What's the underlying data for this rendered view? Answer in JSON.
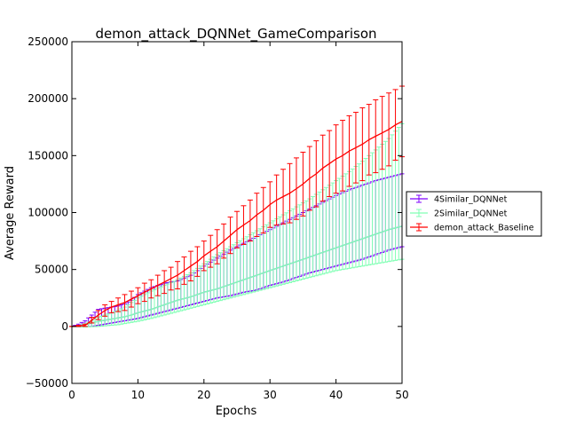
{
  "chart_data": {
    "type": "line",
    "title": "demon_attack_DQNNet_GameComparison",
    "xlabel": "Epochs",
    "ylabel": "Average Reward",
    "xlim": [
      0,
      50
    ],
    "ylim": [
      -50000,
      250000
    ],
    "xticks": [
      0,
      10,
      20,
      30,
      40,
      50
    ],
    "yticks": [
      -50000,
      0,
      50000,
      100000,
      150000,
      200000,
      250000
    ],
    "xtick_labels": [
      "0",
      "10",
      "20",
      "30",
      "40",
      "50"
    ],
    "ytick_labels": [
      "−50000",
      "0",
      "50000",
      "100000",
      "150000",
      "200000",
      "250000"
    ],
    "grid": false,
    "legend_position": "outside-right",
    "error_bars": true,
    "series": [
      {
        "name": "4Similar_DQNNet",
        "color": "#7f00ff",
        "x": [
          0,
          1,
          2,
          3,
          4,
          5,
          6,
          7,
          8,
          9,
          10,
          12,
          14,
          16,
          18,
          20,
          22,
          24,
          26,
          28,
          30,
          32,
          34,
          36,
          38,
          40,
          42,
          44,
          46,
          48,
          50
        ],
        "mean": [
          0,
          300,
          1500,
          3000,
          4500,
          5500,
          6500,
          7500,
          8500,
          10000,
          12000,
          15000,
          19000,
          23000,
          26000,
          30000,
          33000,
          37000,
          41000,
          45000,
          49000,
          53000,
          57000,
          61000,
          65000,
          69000,
          73000,
          77000,
          81000,
          85000,
          88000
        ],
        "upper": [
          0,
          2000,
          5000,
          10000,
          15000,
          16000,
          17000,
          18000,
          20000,
          23000,
          28000,
          34000,
          38000,
          40000,
          45000,
          53000,
          60000,
          67000,
          73000,
          79000,
          85000,
          91000,
          97000,
          103000,
          109000,
          115000,
          120000,
          124000,
          128000,
          131000,
          134000
        ],
        "lower": [
          0,
          -300,
          -200,
          0,
          1000,
          2000,
          3000,
          4000,
          5000,
          6000,
          7000,
          10000,
          13000,
          16000,
          19000,
          22000,
          25000,
          27000,
          30000,
          32000,
          36000,
          39000,
          43000,
          47000,
          50000,
          53000,
          56000,
          59000,
          63000,
          67000,
          70000
        ]
      },
      {
        "name": "2Similar_DQNNet",
        "color": "#80ffb4",
        "x": [
          0,
          1,
          2,
          3,
          4,
          5,
          6,
          7,
          8,
          9,
          10,
          12,
          14,
          16,
          18,
          20,
          22,
          24,
          26,
          28,
          30,
          32,
          34,
          36,
          38,
          40,
          42,
          44,
          46,
          48,
          50
        ],
        "mean": [
          0,
          300,
          1500,
          3000,
          4500,
          5500,
          6500,
          7500,
          8500,
          10000,
          12000,
          15000,
          19000,
          23000,
          26000,
          30000,
          33000,
          37000,
          41000,
          45000,
          49000,
          53000,
          57000,
          61000,
          65000,
          69000,
          73000,
          77000,
          81000,
          85000,
          88000
        ],
        "upper": [
          0,
          500,
          2500,
          5000,
          8000,
          10000,
          12000,
          14000,
          17000,
          21000,
          25000,
          31000,
          36000,
          41000,
          47000,
          55000,
          63000,
          70000,
          77000,
          84000,
          91000,
          98000,
          105000,
          112000,
          120000,
          128000,
          136000,
          145000,
          155000,
          165000,
          178000
        ],
        "lower": [
          0,
          -300,
          -500,
          -200,
          0,
          500,
          1000,
          1500,
          2500,
          3500,
          4500,
          7000,
          10000,
          13000,
          16000,
          19000,
          22000,
          25000,
          28000,
          31000,
          34000,
          37000,
          40000,
          43000,
          46000,
          49000,
          51000,
          53000,
          55000,
          57000,
          59000
        ]
      },
      {
        "name": "demon_attack_Baseline",
        "color": "#ff0000",
        "x": [
          0,
          2,
          4,
          5,
          6,
          7,
          8,
          9,
          10,
          11,
          12,
          13,
          14,
          15,
          16,
          17,
          18,
          19,
          20,
          21,
          22,
          23,
          24,
          25,
          26,
          27,
          28,
          29,
          30,
          31,
          32,
          33,
          34,
          35,
          36,
          37,
          38,
          39,
          40,
          41,
          42,
          43,
          44,
          45,
          46,
          47,
          48,
          49,
          50
        ],
        "mean": [
          0,
          1000,
          10000,
          14000,
          17000,
          19000,
          21000,
          24000,
          27000,
          30000,
          33000,
          36000,
          39000,
          42000,
          45000,
          49000,
          53000,
          57000,
          62000,
          66000,
          70000,
          75000,
          80000,
          85000,
          89000,
          93000,
          98000,
          102000,
          107000,
          111000,
          114000,
          117000,
          121000,
          125000,
          130000,
          134000,
          139000,
          143000,
          147000,
          150000,
          154000,
          157000,
          160000,
          164000,
          167000,
          170000,
          173000,
          177000,
          180000
        ],
        "upper": [
          0,
          2000,
          14000,
          19000,
          22000,
          25000,
          28000,
          31000,
          34000,
          38000,
          41000,
          45000,
          49000,
          52000,
          57000,
          61000,
          66000,
          70000,
          75000,
          80000,
          85000,
          90000,
          96000,
          101000,
          106000,
          111000,
          117000,
          122000,
          127000,
          133000,
          138000,
          143000,
          148000,
          153000,
          158000,
          163000,
          168000,
          172000,
          177000,
          181000,
          185000,
          188000,
          192000,
          195000,
          199000,
          202000,
          205000,
          208000,
          211000
        ],
        "lower": [
          0,
          0,
          6000,
          9000,
          12000,
          13000,
          14000,
          17000,
          20000,
          22000,
          25000,
          27000,
          29000,
          32000,
          33000,
          37000,
          40000,
          44000,
          49000,
          52000,
          55000,
          60000,
          64000,
          69000,
          72000,
          75000,
          79000,
          82000,
          87000,
          89000,
          90000,
          91000,
          94000,
          97000,
          102000,
          105000,
          110000,
          114000,
          117000,
          119000,
          123000,
          126000,
          128000,
          133000,
          135000,
          138000,
          141000,
          146000,
          149000
        ]
      }
    ]
  }
}
